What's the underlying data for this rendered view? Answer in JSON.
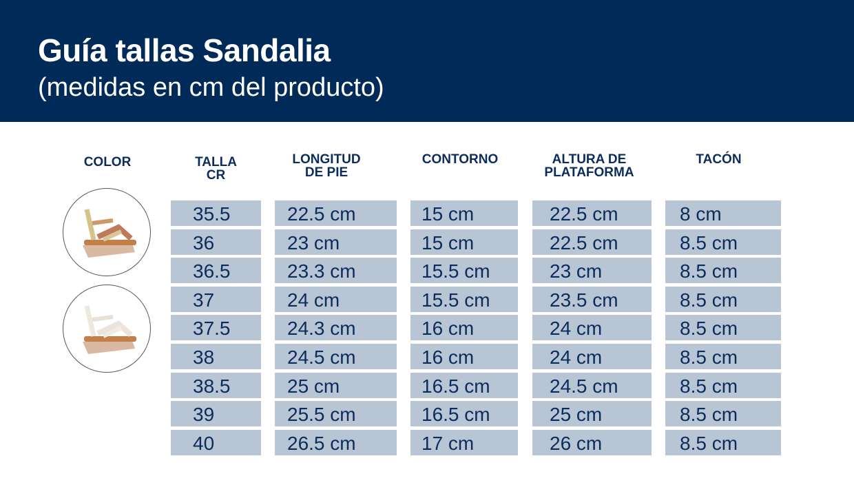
{
  "header": {
    "title": "Guía tallas Sandalia",
    "subtitle": "(medidas en cm del producto)"
  },
  "columns": [
    "COLOR",
    "TALLA\nCR",
    "LONGITUD\nDE PIE",
    "CONTORNO",
    "ALTURA DE\nPLATAFORMA",
    "TACÓN"
  ],
  "colors": [
    {
      "name": "sandal-metallic-icon",
      "strap": "#c99a6e"
    },
    {
      "name": "sandal-white-icon",
      "strap": "#eee8df"
    }
  ],
  "rows": {
    "talla": [
      "35.5",
      "36",
      "36.5",
      "37",
      "37.5",
      "38",
      "38.5",
      "39",
      "40"
    ],
    "longitud": [
      "22.5 cm",
      "23 cm",
      "23.3 cm",
      "24 cm",
      "24.3 cm",
      "24.5 cm",
      "25 cm",
      "25.5 cm",
      "26.5 cm"
    ],
    "contorno": [
      "15 cm",
      "15 cm",
      "15.5 cm",
      "15.5 cm",
      "16 cm",
      "16 cm",
      "16.5 cm",
      "16.5 cm",
      "17 cm"
    ],
    "altura": [
      "22.5 cm",
      "22.5 cm",
      "23 cm",
      "23.5 cm",
      "24 cm",
      "24 cm",
      "24.5 cm",
      "25 cm",
      "26 cm"
    ],
    "tacon": [
      "8 cm",
      "8.5 cm",
      "8.5 cm",
      "8.5 cm",
      "8.5 cm",
      "8.5 cm",
      "8.5 cm",
      "8.5 cm",
      "8.5 cm"
    ]
  }
}
